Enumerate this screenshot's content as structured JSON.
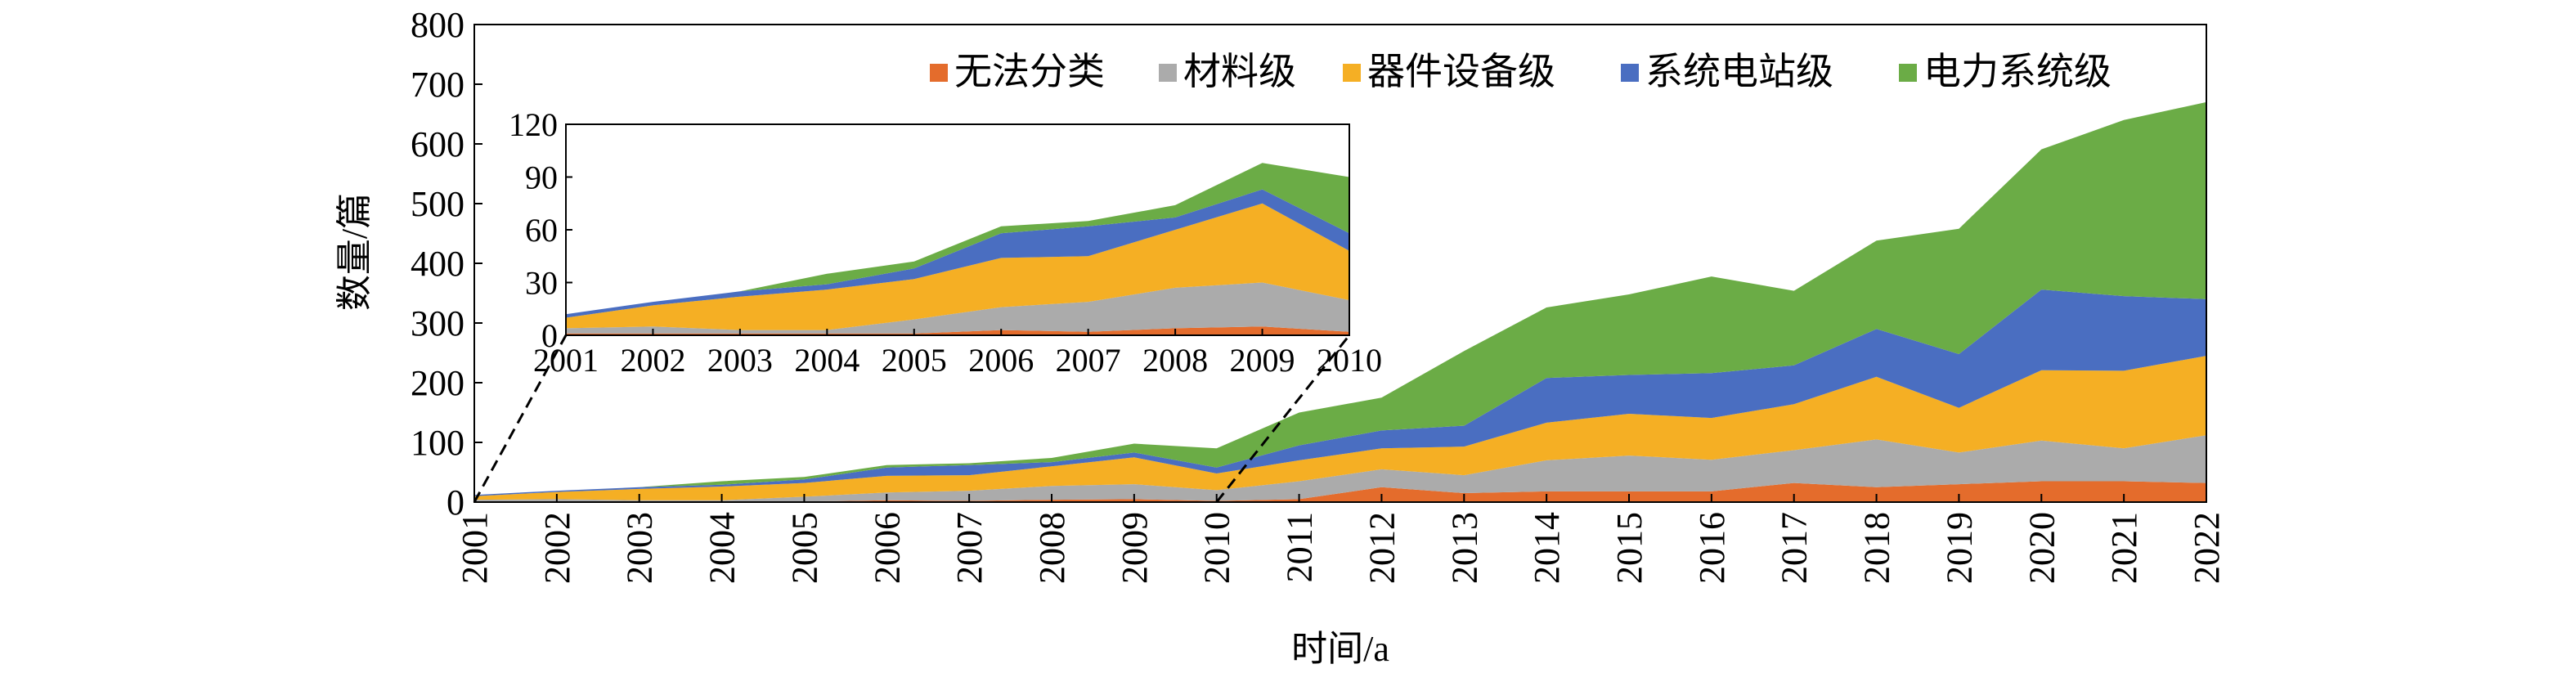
{
  "chart_data": {
    "type": "area",
    "stacked": true,
    "xlabel": "时间/a",
    "ylabel": "数量/篇",
    "ylim": [
      0,
      800
    ],
    "yticks": [
      0,
      100,
      200,
      300,
      400,
      500,
      600,
      700,
      800
    ],
    "categories": [
      "2001",
      "2002",
      "2003",
      "2004",
      "2005",
      "2006",
      "2007",
      "2008",
      "2009",
      "2010",
      "2011",
      "2012",
      "2013",
      "2014",
      "2015",
      "2016",
      "2017",
      "2018",
      "2019",
      "2020",
      "2021",
      "2022"
    ],
    "legend_position": "top-right",
    "grid": false,
    "series": [
      {
        "name": "无法分类",
        "color": "#E46C2C",
        "values": [
          1,
          1,
          1,
          1,
          1,
          3,
          2,
          4,
          5,
          2,
          5,
          25,
          15,
          18,
          18,
          18,
          32,
          25,
          30,
          35,
          35,
          32
        ]
      },
      {
        "name": "材料级",
        "color": "#ABABAB",
        "values": [
          3,
          4,
          2,
          2,
          8,
          13,
          17,
          23,
          25,
          18,
          30,
          30,
          30,
          52,
          60,
          53,
          55,
          80,
          53,
          68,
          55,
          80
        ]
      },
      {
        "name": "器件设备级",
        "color": "#F5AF24",
        "values": [
          6,
          12,
          19,
          23,
          23,
          28,
          26,
          33,
          45,
          28,
          35,
          35,
          48,
          63,
          70,
          70,
          77,
          105,
          75,
          118,
          130,
          133
        ]
      },
      {
        "name": "系统电站级",
        "color": "#4A6EC1",
        "values": [
          2,
          2,
          3,
          3,
          6,
          14,
          17,
          7,
          8,
          10,
          25,
          30,
          35,
          75,
          65,
          75,
          65,
          80,
          90,
          135,
          125,
          95
        ]
      },
      {
        "name": "电力系统级",
        "color": "#6BAC46",
        "values": [
          0,
          0,
          0,
          6,
          4,
          4,
          3,
          7,
          15,
          32,
          55,
          55,
          125,
          118,
          135,
          162,
          125,
          148,
          210,
          235,
          295,
          330
        ]
      }
    ],
    "inset": {
      "categories": [
        "2001",
        "2002",
        "2003",
        "2004",
        "2005",
        "2006",
        "2007",
        "2008",
        "2009",
        "2010"
      ],
      "ylim": [
        0,
        120
      ],
      "yticks": [
        0,
        30,
        60,
        90,
        120
      ]
    }
  }
}
